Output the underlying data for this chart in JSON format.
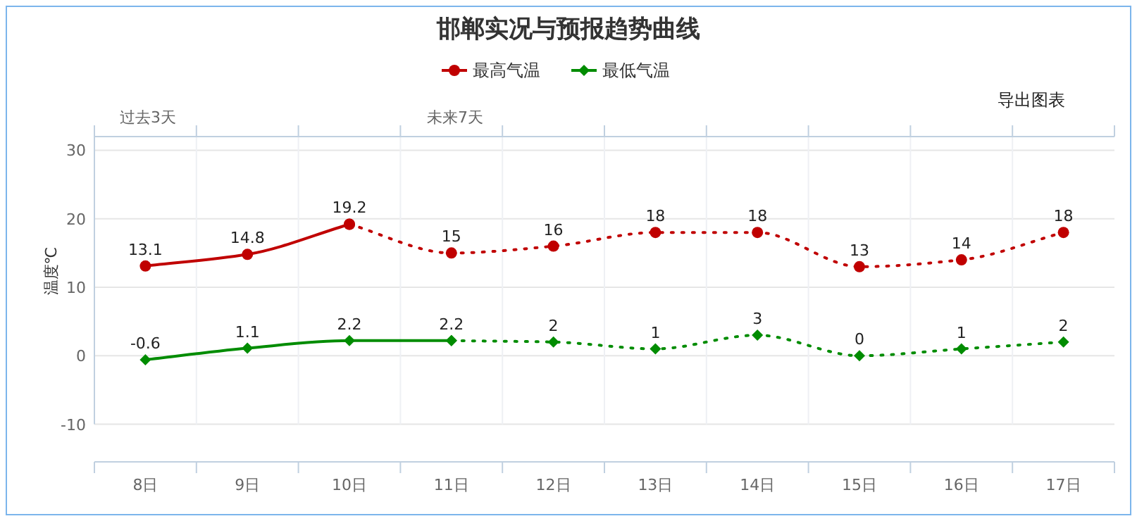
{
  "chart_data": {
    "type": "line",
    "title": "邯郸实况与预报趋势曲线",
    "ylabel": "温度℃",
    "categories": [
      "8日",
      "9日",
      "10日",
      "11日",
      "12日",
      "13日",
      "14日",
      "15日",
      "16日",
      "17日"
    ],
    "ylim": [
      -15.5,
      32
    ],
    "yticks": [
      -10,
      0,
      10,
      20,
      30
    ],
    "grid": true,
    "legend": "top",
    "annotations": [
      "过去3天",
      "未来7天",
      "导出图表"
    ],
    "series": [
      {
        "name": "最高气温",
        "color": "#c00000",
        "marker": "circle",
        "line_style": "solid",
        "values": [
          13.1,
          14.8,
          19.2,
          null,
          null,
          null,
          null,
          null,
          null,
          null
        ],
        "value_labels": [
          "13.1",
          "14.8",
          "19.2",
          null,
          null,
          null,
          null,
          null,
          null,
          null
        ]
      },
      {
        "color": "#c00000",
        "marker": "circle",
        "line_style": "dotted",
        "values": [
          null,
          null,
          19.2,
          15,
          16,
          18,
          18,
          13,
          14,
          18
        ],
        "value_labels": [
          null,
          null,
          null,
          "15",
          "16",
          "18",
          "18",
          "13",
          "14",
          "18"
        ]
      },
      {
        "name": "最低气温",
        "color": "#008c00",
        "marker": "diamond",
        "line_style": "solid",
        "values": [
          -0.6,
          1.1,
          2.2,
          2.2,
          null,
          null,
          null,
          null,
          null,
          null
        ],
        "value_labels": [
          "-0.6",
          "1.1",
          "2.2",
          "2.2",
          null,
          null,
          null,
          null,
          null,
          null
        ]
      },
      {
        "color": "#008c00",
        "marker": "diamond",
        "line_style": "dotted",
        "values": [
          null,
          null,
          null,
          2.2,
          2,
          1,
          3,
          0,
          1,
          2
        ],
        "value_labels": [
          null,
          null,
          null,
          null,
          "2",
          "1",
          "3",
          "0",
          "1",
          "2"
        ]
      }
    ]
  }
}
